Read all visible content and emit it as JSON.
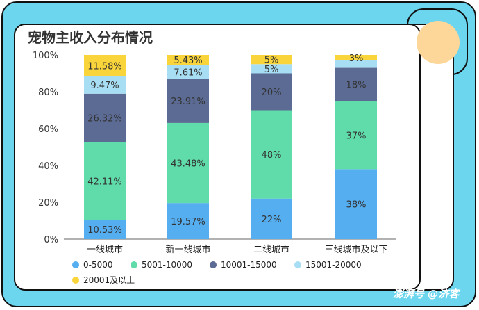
{
  "title": "宠物主收入分布情况",
  "watermark": "澎湃号 @济客",
  "chart_data": {
    "type": "bar",
    "stacked": true,
    "categories": [
      "一线城市",
      "新一线城市",
      "二线城市",
      "三线城市及以下"
    ],
    "ylim": [
      0,
      100
    ],
    "yticks": [
      "0%",
      "20%",
      "40%",
      "60%",
      "80%",
      "100%"
    ],
    "series": [
      {
        "name": "0-5000",
        "color": "#55aef0",
        "values": [
          10.53,
          19.57,
          22,
          38
        ],
        "labels": [
          "10.53%",
          "19.57%",
          "22%",
          "38%"
        ]
      },
      {
        "name": "5001-10000",
        "color": "#5fdcaa",
        "values": [
          42.11,
          43.48,
          48,
          37
        ],
        "labels": [
          "42.11%",
          "43.48%",
          "48%",
          "37%"
        ]
      },
      {
        "name": "10001-15000",
        "color": "#5b6b94",
        "values": [
          26.32,
          23.91,
          20,
          18
        ],
        "labels": [
          "26.32%",
          "23.91%",
          "20%",
          "18%"
        ]
      },
      {
        "name": "15001-20000",
        "color": "#a8def3",
        "values": [
          9.47,
          7.61,
          5,
          4
        ],
        "labels": [
          "9.47%",
          "7.61%",
          "5%",
          ""
        ]
      },
      {
        "name": "20001及以上",
        "color": "#f9d43a",
        "values": [
          11.58,
          5.43,
          5,
          3
        ],
        "labels": [
          "11.58%",
          "5.43%",
          "5%",
          "3%"
        ]
      }
    ],
    "legend_position": "bottom"
  }
}
